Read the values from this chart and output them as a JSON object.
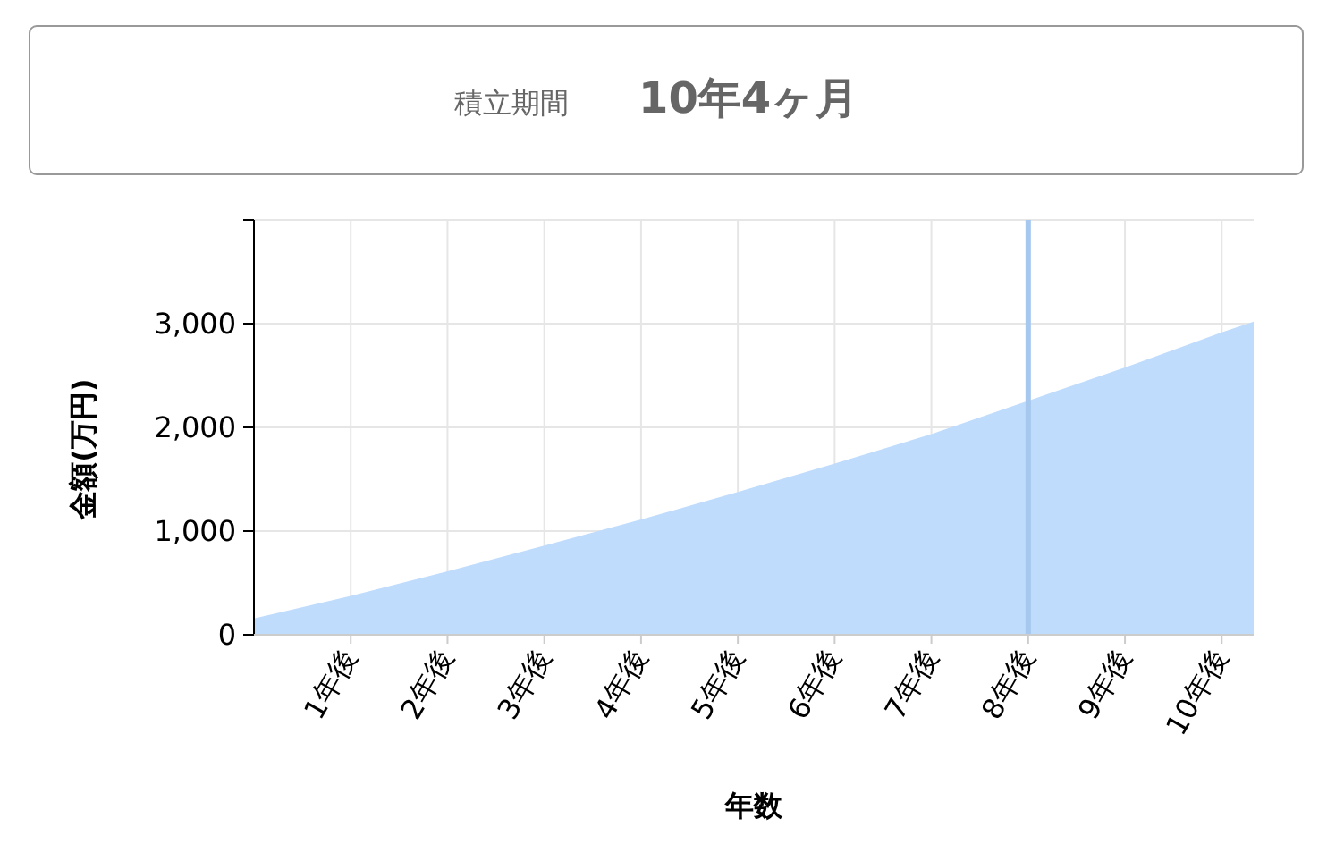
{
  "chart_data": {
    "type": "area",
    "title": "積立期間",
    "subtitle": "10年4ヶ月",
    "xlabel": "年数",
    "ylabel": "金額(万円)",
    "x": [
      0,
      1,
      2,
      3,
      4,
      5,
      6,
      7,
      8,
      9,
      10,
      10.33
    ],
    "series": [
      {
        "color": "#bfdcfd",
        "values": [
          157,
          375,
          613,
          859,
          1111,
          1377,
          1650,
          1936,
          2256,
          2577,
          2917,
          3020
        ]
      }
    ],
    "xlim": [
      0,
      10.33
    ],
    "xticks": [
      {
        "value": 1,
        "label": "1年後"
      },
      {
        "value": 2,
        "label": "2年後"
      },
      {
        "value": 3,
        "label": "3年後"
      },
      {
        "value": 4,
        "label": "4年後"
      },
      {
        "value": 5,
        "label": "5年後"
      },
      {
        "value": 6,
        "label": "6年後"
      },
      {
        "value": 7,
        "label": "7年後"
      },
      {
        "value": 8,
        "label": "8年後"
      },
      {
        "value": 9,
        "label": "9年後"
      },
      {
        "value": 10,
        "label": "10年後"
      }
    ],
    "ylim": [
      0,
      4000
    ],
    "yticks": [
      0,
      {
        "value": 1000,
        "label": "1,000"
      },
      {
        "value": 2000,
        "label": "2,000"
      },
      {
        "value": 3000,
        "label": "3,000"
      }
    ],
    "ref_lines": [
      {
        "axis": "x",
        "value": 8,
        "color": "#a6c8ee"
      }
    ],
    "grid": true
  }
}
